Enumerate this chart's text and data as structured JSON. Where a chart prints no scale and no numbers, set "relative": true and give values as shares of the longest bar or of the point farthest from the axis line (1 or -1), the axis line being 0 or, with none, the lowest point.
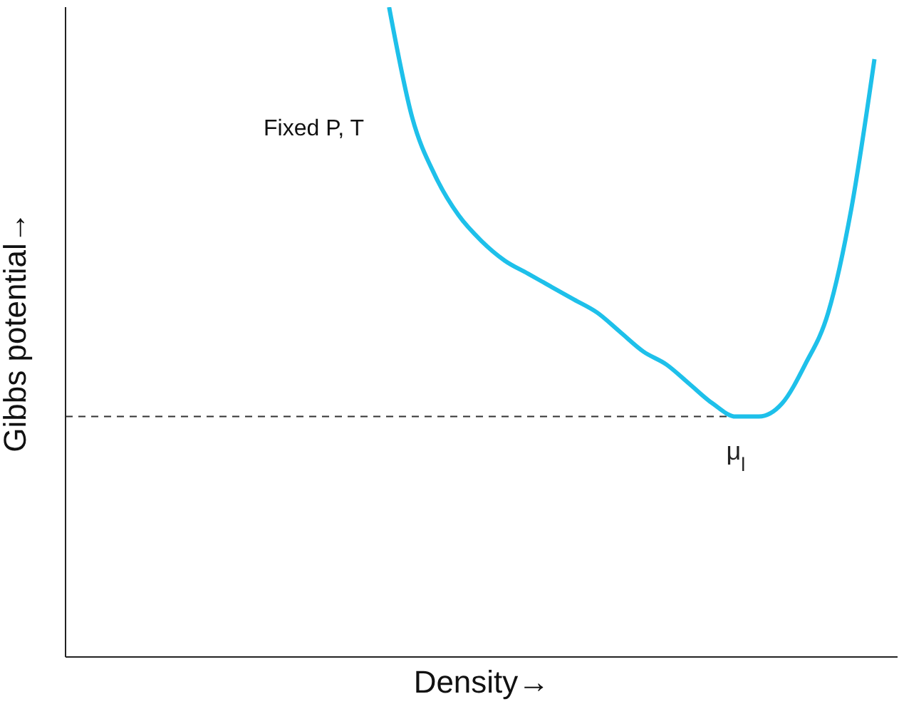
{
  "chart_data": {
    "type": "line",
    "relative": true,
    "xlabel": "Density→",
    "ylabel": "Gibbs potential→",
    "categories": [
      null,
      null,
      null,
      null,
      null,
      null,
      null,
      null,
      null,
      null,
      null,
      null,
      null,
      null,
      null,
      null,
      null,
      null,
      null,
      null,
      null,
      null,
      null,
      null,
      null,
      null,
      null,
      null,
      null,
      null,
      null,
      null,
      null,
      null,
      null,
      null,
      null
    ],
    "series": [
      {
        "color": "#1ec0ea",
        "values": [
          null,
          null,
          null,
          null,
          null,
          null,
          null,
          null,
          null,
          null,
          null,
          null,
          null,
          null,
          1,
          0.83,
          0.74,
          0.68,
          0.64,
          0.61,
          0.59,
          0.57,
          0.55,
          0.53,
          0.5,
          0.47,
          0.45,
          0.42,
          0.39,
          0.37,
          0.37,
          0.39,
          0.45,
          0.53,
          0.69,
          0.92,
          null
        ]
      }
    ],
    "ref_lines": [
      {
        "axis": "y",
        "value": 0.37,
        "label": "μ$_{l}$",
        "line_style": "dashed",
        "color": "#333333"
      }
    ],
    "annotations": [
      "Fixed P, T"
    ],
    "line_style": "solid",
    "marker": "none"
  }
}
